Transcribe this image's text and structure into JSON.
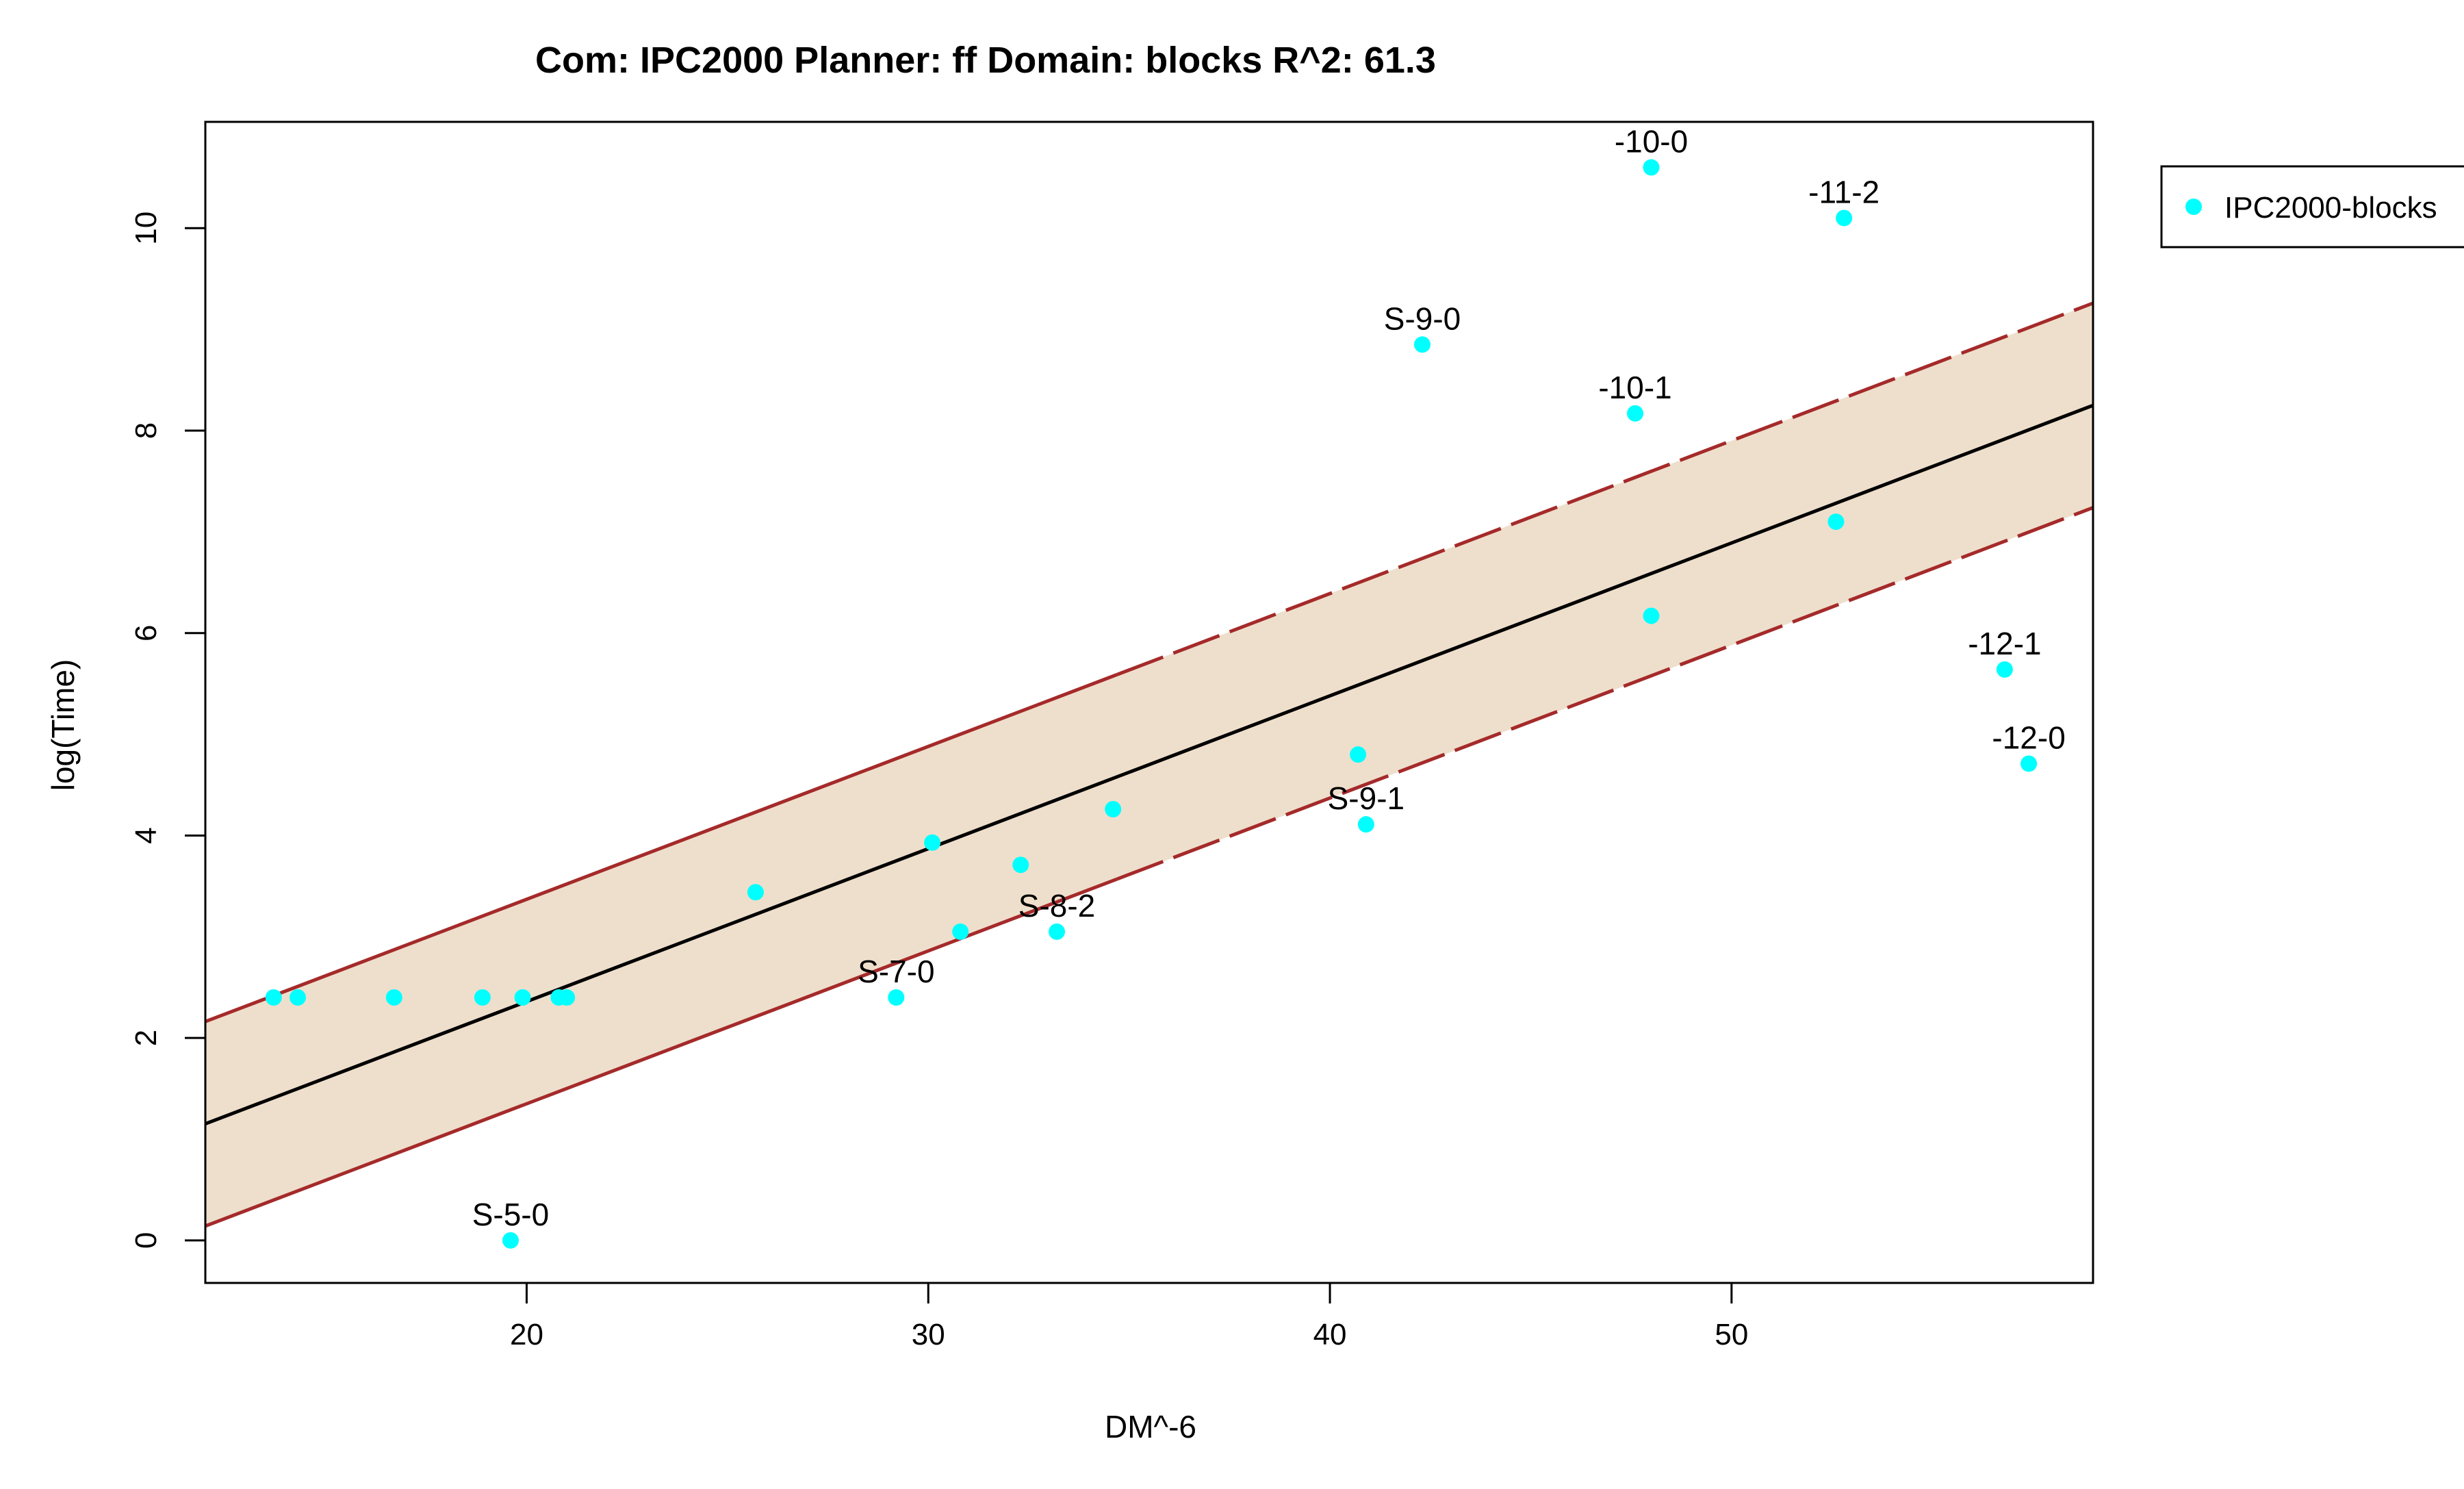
{
  "chart_data": {
    "type": "scatter",
    "title": "Com: IPC2000 Planner: ff Domain: blocks R^2: 61.3",
    "xlabel": "DM^-6",
    "ylabel": "log(Time)",
    "xlim": [
      12,
      59
    ],
    "ylim": [
      -0.42,
      11.05
    ],
    "x_ticks": [
      20,
      30,
      40,
      50
    ],
    "y_ticks": [
      0,
      2,
      4,
      6,
      8,
      10
    ],
    "grid": false,
    "legend": {
      "position": "outside-right",
      "entries": [
        "IPC2000-blocks"
      ]
    },
    "colors": {
      "points": "#00ffff",
      "band": "#eedfcc",
      "band_edge": "#a52a2a",
      "fit_line": "#000000"
    },
    "fit": {
      "intercept": -0.66,
      "slope": 0.151,
      "band_halfwidth": 1.01,
      "solid_until_x": 34.7
    },
    "series": [
      {
        "name": "IPC2000-blocks",
        "points": [
          {
            "x": 13.7,
            "y": 2.4,
            "label": ""
          },
          {
            "x": 14.3,
            "y": 2.4,
            "label": ""
          },
          {
            "x": 16.7,
            "y": 2.4,
            "label": ""
          },
          {
            "x": 18.9,
            "y": 2.4,
            "label": ""
          },
          {
            "x": 19.9,
            "y": 2.4,
            "label": ""
          },
          {
            "x": 20.8,
            "y": 2.4,
            "label": ""
          },
          {
            "x": 21.0,
            "y": 2.4,
            "label": ""
          },
          {
            "x": 19.6,
            "y": 0.0,
            "label": "S-5-0"
          },
          {
            "x": 25.7,
            "y": 3.44,
            "label": ""
          },
          {
            "x": 29.2,
            "y": 2.4,
            "label": "S-7-0"
          },
          {
            "x": 30.1,
            "y": 3.93,
            "label": ""
          },
          {
            "x": 30.8,
            "y": 3.05,
            "label": ""
          },
          {
            "x": 32.3,
            "y": 3.71,
            "label": ""
          },
          {
            "x": 33.2,
            "y": 3.05,
            "label": "S-8-2"
          },
          {
            "x": 34.6,
            "y": 4.26,
            "label": ""
          },
          {
            "x": 40.7,
            "y": 4.8,
            "label": ""
          },
          {
            "x": 40.9,
            "y": 4.11,
            "label": "S-9-1"
          },
          {
            "x": 42.3,
            "y": 8.85,
            "label": "S-9-0"
          },
          {
            "x": 47.6,
            "y": 8.17,
            "label": "-10-1"
          },
          {
            "x": 48.0,
            "y": 10.6,
            "label": "-10-0"
          },
          {
            "x": 48.0,
            "y": 6.17,
            "label": ""
          },
          {
            "x": 52.6,
            "y": 7.1,
            "label": ""
          },
          {
            "x": 52.8,
            "y": 10.1,
            "label": "-11-2"
          },
          {
            "x": 56.8,
            "y": 5.64,
            "label": "-12-1"
          },
          {
            "x": 57.4,
            "y": 4.71,
            "label": "-12-0"
          }
        ]
      }
    ]
  }
}
